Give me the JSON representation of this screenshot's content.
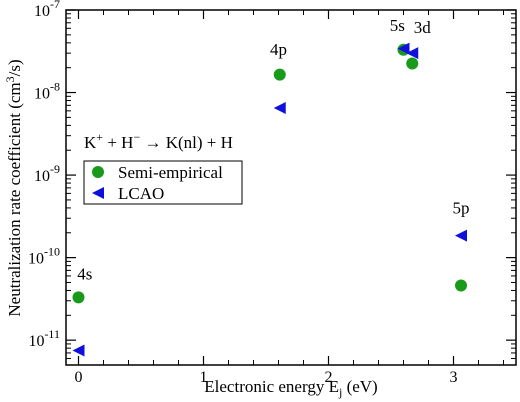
{
  "chart_data": {
    "type": "scatter",
    "xlabel": "Electronic energy E",
    "xlabel_sub": "j",
    "xlabel_unit": " (eV)",
    "ylabel": "Neutralization rate coefficient (cm",
    "ylabel_sup": "3",
    "ylabel_unit": "/s)",
    "xlim": [
      -0.1,
      3.5
    ],
    "ylim": [
      5e-12,
      1e-07
    ],
    "yscale": "log",
    "grid": false,
    "legend_position": "left-middle",
    "x_ticks": [
      0,
      1,
      2,
      3
    ],
    "x_tick_labels": [
      "0",
      "1",
      "2",
      "3"
    ],
    "y_ticks": [
      1e-11,
      1e-10,
      1e-09,
      1e-08,
      1e-07
    ],
    "y_tick_labels": [
      {
        "base": "10",
        "exp": "-11"
      },
      {
        "base": "10",
        "exp": "-10"
      },
      {
        "base": "10",
        "exp": "-9"
      },
      {
        "base": "10",
        "exp": "-8"
      },
      {
        "base": "10",
        "exp": "-7"
      }
    ],
    "series": [
      {
        "name": "Semi-empirical",
        "marker": "circle",
        "color": "#1a9a1a",
        "points": [
          {
            "x": 0.0,
            "y": 3.3e-11
          },
          {
            "x": 1.61,
            "y": 1.65e-08
          },
          {
            "x": 2.6,
            "y": 3.3e-08
          },
          {
            "x": 2.67,
            "y": 2.25e-08
          },
          {
            "x": 3.06,
            "y": 4.6e-11
          }
        ]
      },
      {
        "name": "LCAO",
        "marker": "triangle-left",
        "color": "#1010dd",
        "points": [
          {
            "x": 0.0,
            "y": 7.5e-12
          },
          {
            "x": 1.61,
            "y": 6.5e-09
          },
          {
            "x": 2.6,
            "y": 3.4e-08
          },
          {
            "x": 2.67,
            "y": 3e-08
          },
          {
            "x": 3.06,
            "y": 1.85e-10
          }
        ]
      }
    ],
    "annotations": [
      {
        "text": "4s",
        "x": 0.05,
        "y": 5.4e-11
      },
      {
        "text": "4p",
        "x": 1.6,
        "y": 2.85e-08
      },
      {
        "text": "5s",
        "x": 2.55,
        "y": 5.6e-08
      },
      {
        "text": "3d",
        "x": 2.75,
        "y": 5.3e-08
      },
      {
        "text": "5p",
        "x": 3.06,
        "y": 3.4e-10
      }
    ],
    "reaction": {
      "k": "K",
      "k_sup": "+",
      "plus1": " + H",
      "h_sup": "−",
      "arrow": " → K(nl) + H"
    }
  }
}
